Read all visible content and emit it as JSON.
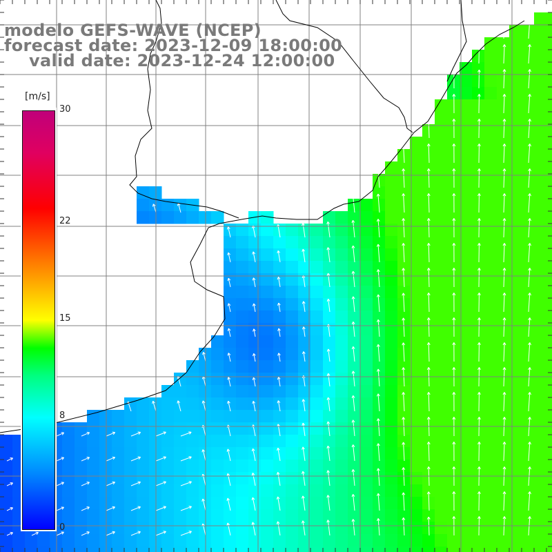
{
  "title": {
    "line1": "modelo GEFS-WAVE (NCEP)",
    "line2": "forecast date: 2023-12-09 18:00:00",
    "line3": "valid date: 2023-12-24 12:00:00"
  },
  "colorbar": {
    "unit": "[m/s]",
    "ticks": [
      "30",
      "22",
      "15",
      "8",
      "0"
    ],
    "tick_values": [
      30,
      22,
      15,
      8,
      0
    ],
    "range": [
      0,
      30
    ],
    "stops": [
      {
        "v": 0,
        "color": "#0000ff"
      },
      {
        "v": 4,
        "color": "#0088ff"
      },
      {
        "v": 8,
        "color": "#00ffff"
      },
      {
        "v": 11,
        "color": "#00ff80"
      },
      {
        "v": 13,
        "color": "#00ff00"
      },
      {
        "v": 15,
        "color": "#ffff00"
      },
      {
        "v": 19,
        "color": "#ff8000"
      },
      {
        "v": 23,
        "color": "#ff0000"
      },
      {
        "v": 27,
        "color": "#e00060"
      },
      {
        "v": 30,
        "color": "#c0007a"
      }
    ]
  },
  "colors": {
    "land": "#ffffff",
    "grid": "#808080",
    "coast": "#000000",
    "arrows": "#ffffff"
  },
  "field": {
    "quantity": "wind speed",
    "units": "m/s",
    "direction": "mostly from south-southeast"
  }
}
